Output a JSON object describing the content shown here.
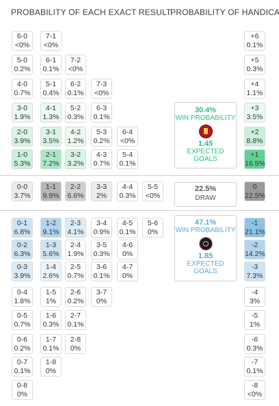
{
  "headers": {
    "exact": "PROBABILITY OF EACH EXACT RESULT",
    "handicap": "PROBABILITY OF HANDICAP"
  },
  "colors": {
    "win_text": "#2dbf7a",
    "away_text": "#5aa7dc",
    "draw_text": "#555555"
  },
  "home_win": {
    "probability": "30.4%",
    "label": "WIN PROBABILITY",
    "goals": "1.45",
    "goals_label": "EXPECTED GOALS",
    "crest": "red-club-crest-icon"
  },
  "draw": {
    "probability": "22.5%",
    "label": "DRAW"
  },
  "away_win": {
    "probability": "47.1%",
    "label": "WIN PROBABILITY",
    "goals": "1.85",
    "goals_label": "EXPECTED GOALS",
    "crest": "black-pink-club-crest-icon"
  },
  "results": [
    {
      "score": "6-0",
      "prob": "<0%",
      "bg": "#ffffff"
    },
    {
      "score": "7-1",
      "prob": "<0%",
      "bg": "#ffffff"
    },
    {
      "score": "5-0",
      "prob": "0.2%",
      "bg": "#ffffff"
    },
    {
      "score": "6-1",
      "prob": "0.1%",
      "bg": "#ffffff"
    },
    {
      "score": "7-2",
      "prob": "<0%",
      "bg": "#ffffff"
    },
    {
      "score": "4-0",
      "prob": "0.7%",
      "bg": "#ffffff"
    },
    {
      "score": "5-1",
      "prob": "0.4%",
      "bg": "#ffffff"
    },
    {
      "score": "6-2",
      "prob": "0.1%",
      "bg": "#ffffff"
    },
    {
      "score": "7-3",
      "prob": "<0%",
      "bg": "#ffffff"
    },
    {
      "score": "3-0",
      "prob": "1.9%",
      "bg": "#eafaf1"
    },
    {
      "score": "4-1",
      "prob": "1.3%",
      "bg": "#eafaf1"
    },
    {
      "score": "5-2",
      "prob": "0.3%",
      "bg": "#ffffff"
    },
    {
      "score": "6-3",
      "prob": "0.1%",
      "bg": "#ffffff"
    },
    {
      "score": "2-0",
      "prob": "3.9%",
      "bg": "#d8f5e6"
    },
    {
      "score": "3-1",
      "prob": "3.5%",
      "bg": "#d8f5e6"
    },
    {
      "score": "4-2",
      "prob": "1.2%",
      "bg": "#eafaf1"
    },
    {
      "score": "5-3",
      "prob": "0.2%",
      "bg": "#ffffff"
    },
    {
      "score": "6-4",
      "prob": "<0%",
      "bg": "#ffffff"
    },
    {
      "score": "1-0",
      "prob": "5.3%",
      "bg": "#c9f0dc"
    },
    {
      "score": "2-1",
      "prob": "7.2%",
      "bg": "#a8e8c6"
    },
    {
      "score": "3-2",
      "prob": "3.2%",
      "bg": "#d8f5e6"
    },
    {
      "score": "4-3",
      "prob": "0.7%",
      "bg": "#ffffff"
    },
    {
      "score": "5-4",
      "prob": "0.1%",
      "bg": "#ffffff"
    },
    {
      "score": "0-0",
      "prob": "3.7%",
      "bg": "#ececec"
    },
    {
      "score": "1-1",
      "prob": "9.9%",
      "bg": "#b5b5b5"
    },
    {
      "score": "2-2",
      "prob": "6.6%",
      "bg": "#cfcfcf"
    },
    {
      "score": "3-3",
      "prob": "2%",
      "bg": "#ececec"
    },
    {
      "score": "4-4",
      "prob": "0.3%",
      "bg": "#ffffff"
    },
    {
      "score": "5-5",
      "prob": "<0%",
      "bg": "#ffffff"
    },
    {
      "score": "0-1",
      "prob": "6.8%",
      "bg": "#cde4f4"
    },
    {
      "score": "1-2",
      "prob": "9.1%",
      "bg": "#b0d5ef"
    },
    {
      "score": "2-3",
      "prob": "4.1%",
      "bg": "#dcecf7"
    },
    {
      "score": "3-4",
      "prob": "0.9%",
      "bg": "#ffffff"
    },
    {
      "score": "4-5",
      "prob": "0.1%",
      "bg": "#ffffff"
    },
    {
      "score": "5-6",
      "prob": "0%",
      "bg": "#ffffff"
    },
    {
      "score": "0-2",
      "prob": "6.3%",
      "bg": "#cde4f4"
    },
    {
      "score": "1-3",
      "prob": "5.6%",
      "bg": "#cde4f4"
    },
    {
      "score": "2-4",
      "prob": "1.9%",
      "bg": "#ffffff"
    },
    {
      "score": "3-5",
      "prob": "0.3%",
      "bg": "#ffffff"
    },
    {
      "score": "4-6",
      "prob": "0%",
      "bg": "#ffffff"
    },
    {
      "score": "0-3",
      "prob": "3.9%",
      "bg": "#dcecf7"
    },
    {
      "score": "1-4",
      "prob": "2.6%",
      "bg": "#ebf4fb"
    },
    {
      "score": "2-5",
      "prob": "0.7%",
      "bg": "#ffffff"
    },
    {
      "score": "3-6",
      "prob": "0.1%",
      "bg": "#ffffff"
    },
    {
      "score": "4-7",
      "prob": "0%",
      "bg": "#ffffff"
    },
    {
      "score": "0-4",
      "prob": "1.8%",
      "bg": "#ffffff"
    },
    {
      "score": "1-5",
      "prob": "1%",
      "bg": "#ffffff"
    },
    {
      "score": "2-6",
      "prob": "0.2%",
      "bg": "#ffffff"
    },
    {
      "score": "3-7",
      "prob": "0%",
      "bg": "#ffffff"
    },
    {
      "score": "0-5",
      "prob": "0.7%",
      "bg": "#ffffff"
    },
    {
      "score": "1-6",
      "prob": "0.3%",
      "bg": "#ffffff"
    },
    {
      "score": "2-7",
      "prob": "0.1%",
      "bg": "#ffffff"
    },
    {
      "score": "0-6",
      "prob": "0.2%",
      "bg": "#ffffff"
    },
    {
      "score": "1-7",
      "prob": "0.1%",
      "bg": "#ffffff"
    },
    {
      "score": "2-8",
      "prob": "0%",
      "bg": "#ffffff"
    },
    {
      "score": "0-7",
      "prob": "0.1%",
      "bg": "#ffffff"
    },
    {
      "score": "1-8",
      "prob": "0%",
      "bg": "#ffffff"
    },
    {
      "score": "0-8",
      "prob": "0%",
      "bg": "#ffffff"
    }
  ],
  "handicap": [
    {
      "line": "+6",
      "prob": "0.1%",
      "bg": "#ffffff"
    },
    {
      "line": "+5",
      "prob": "0.3%",
      "bg": "#ffffff"
    },
    {
      "line": "+4",
      "prob": "1.1%",
      "bg": "#ffffff"
    },
    {
      "line": "+3",
      "prob": "3.5%",
      "bg": "#eafaf1"
    },
    {
      "line": "+2",
      "prob": "8.8%",
      "bg": "#c9f0dc"
    },
    {
      "line": "+1",
      "prob": "16.5%",
      "bg": "#5fd394"
    },
    {
      "line": "0",
      "prob": "22.5%",
      "bg": "#9a9a9a"
    },
    {
      "line": "-1",
      "prob": "21.1%",
      "bg": "#8ec1e6"
    },
    {
      "line": "-2",
      "prob": "14.2%",
      "bg": "#b0d5ef"
    },
    {
      "line": "-3",
      "prob": "7.3%",
      "bg": "#cde4f4"
    },
    {
      "line": "-4",
      "prob": "3%",
      "bg": "#ffffff"
    },
    {
      "line": "-5",
      "prob": "1%",
      "bg": "#ffffff"
    },
    {
      "line": "-6",
      "prob": "0.3%",
      "bg": "#ffffff"
    },
    {
      "line": "-7",
      "prob": "0.1%",
      "bg": "#ffffff"
    },
    {
      "line": "-8",
      "prob": "<0%",
      "bg": "#ffffff"
    }
  ]
}
